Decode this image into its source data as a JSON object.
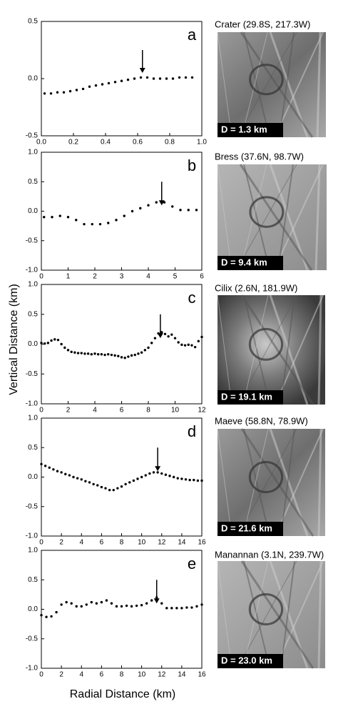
{
  "chart_data": [
    {
      "type": "scatter",
      "panel": "a",
      "image_caption": "Crater (29.8S, 217.3W)",
      "scale_label": "D = 1.3 km",
      "color": "#000000",
      "arrow_x": 0.63,
      "x": [
        0.02,
        0.06,
        0.1,
        0.14,
        0.18,
        0.22,
        0.26,
        0.3,
        0.34,
        0.38,
        0.42,
        0.46,
        0.5,
        0.54,
        0.58,
        0.62,
        0.66,
        0.7,
        0.74,
        0.78,
        0.82,
        0.86,
        0.9,
        0.94
      ],
      "values": [
        -0.13,
        -0.13,
        -0.12,
        -0.12,
        -0.11,
        -0.1,
        -0.09,
        -0.07,
        -0.06,
        -0.05,
        -0.04,
        -0.03,
        -0.02,
        -0.01,
        0.0,
        0.01,
        0.01,
        0.0,
        0.0,
        0.0,
        0.0,
        0.01,
        0.01,
        0.01
      ],
      "xlim": [
        0,
        1
      ],
      "ylim": [
        -0.5,
        0.5
      ],
      "xticks": [
        {
          "value": 0,
          "label": "0.0"
        },
        0.2,
        0.4,
        0.6,
        0.8,
        {
          "value": 1,
          "label": "1.0"
        }
      ],
      "yticks": [
        0.5,
        {
          "value": 0,
          "label": "0.0"
        },
        -0.5
      ]
    },
    {
      "type": "scatter",
      "panel": "b",
      "image_caption": "Bress (37.6N, 98.7W)",
      "scale_label": "D = 9.4 km",
      "color": "#000000",
      "arrow_x": 4.5,
      "x": [
        0.1,
        0.4,
        0.7,
        1.0,
        1.3,
        1.6,
        1.9,
        2.2,
        2.5,
        2.8,
        3.1,
        3.4,
        3.7,
        4.0,
        4.3,
        4.6,
        4.9,
        5.2,
        5.5,
        5.8
      ],
      "values": [
        -0.1,
        -0.1,
        -0.08,
        -0.1,
        -0.15,
        -0.22,
        -0.22,
        -0.22,
        -0.2,
        -0.15,
        -0.08,
        0.0,
        0.05,
        0.1,
        0.15,
        0.15,
        0.08,
        0.02,
        0.02,
        0.02
      ],
      "xlim": [
        0,
        6
      ],
      "ylim": [
        -1,
        1
      ],
      "xticks": [
        0,
        1,
        2,
        3,
        4,
        5,
        6
      ],
      "yticks": [
        {
          "value": 1,
          "label": "1.0"
        },
        0.5,
        {
          "value": 0,
          "label": "0.0"
        },
        -0.5,
        {
          "value": -1,
          "label": "-1.0"
        }
      ]
    },
    {
      "type": "scatter",
      "panel": "c",
      "image_caption": "Cilix (2.6N, 181.9W)",
      "scale_label": "D = 19.1 km",
      "color": "#000000",
      "arrow_x": 8.9,
      "x": [
        0,
        0.25,
        0.5,
        0.75,
        1,
        1.25,
        1.5,
        1.75,
        2,
        2.25,
        2.5,
        2.75,
        3,
        3.25,
        3.5,
        3.75,
        4,
        4.25,
        4.5,
        4.75,
        5,
        5.25,
        5.5,
        5.75,
        6,
        6.25,
        6.5,
        6.75,
        7,
        7.25,
        7.5,
        7.75,
        8,
        8.25,
        8.5,
        8.75,
        9,
        9.25,
        9.5,
        9.75,
        10,
        10.25,
        10.5,
        10.75,
        11,
        11.25,
        11.5,
        11.75,
        12
      ],
      "values": [
        0.02,
        0.01,
        0.02,
        0.06,
        0.08,
        0.07,
        0.0,
        -0.06,
        -0.1,
        -0.13,
        -0.14,
        -0.15,
        -0.15,
        -0.16,
        -0.16,
        -0.17,
        -0.16,
        -0.17,
        -0.17,
        -0.18,
        -0.17,
        -0.18,
        -0.19,
        -0.2,
        -0.22,
        -0.23,
        -0.21,
        -0.19,
        -0.18,
        -0.16,
        -0.14,
        -0.1,
        -0.06,
        0.02,
        0.1,
        0.18,
        0.2,
        0.17,
        0.13,
        0.16,
        0.1,
        0.03,
        -0.01,
        -0.02,
        -0.01,
        -0.02,
        -0.05,
        0.05,
        0.12
      ],
      "xlim": [
        0,
        12
      ],
      "ylim": [
        -1,
        1
      ],
      "xticks": [
        0,
        2,
        4,
        6,
        8,
        10,
        12
      ],
      "yticks": [
        {
          "value": 1,
          "label": "1.0"
        },
        0.5,
        {
          "value": 0,
          "label": "0.0"
        },
        -0.5,
        {
          "value": -1,
          "label": "-1.0"
        }
      ]
    },
    {
      "type": "scatter",
      "panel": "d",
      "image_caption": "Maeve (58.8N, 78.9W)",
      "scale_label": "D = 21.6 km",
      "color": "#000000",
      "arrow_x": 11.6,
      "x": [
        0,
        0.4,
        0.8,
        1.2,
        1.6,
        2,
        2.4,
        2.8,
        3.2,
        3.6,
        4,
        4.4,
        4.8,
        5.2,
        5.6,
        6,
        6.4,
        6.8,
        7.2,
        7.6,
        8,
        8.4,
        8.8,
        9.2,
        9.6,
        10,
        10.4,
        10.8,
        11.2,
        11.6,
        12,
        12.4,
        12.8,
        13.2,
        13.6,
        14,
        14.4,
        14.8,
        15.2,
        15.6,
        16
      ],
      "values": [
        0.22,
        0.19,
        0.16,
        0.13,
        0.1,
        0.08,
        0.05,
        0.03,
        0.0,
        -0.02,
        -0.04,
        -0.07,
        -0.09,
        -0.12,
        -0.14,
        -0.17,
        -0.19,
        -0.22,
        -0.22,
        -0.19,
        -0.16,
        -0.12,
        -0.09,
        -0.06,
        -0.03,
        0.0,
        0.03,
        0.06,
        0.08,
        0.08,
        0.06,
        0.04,
        0.02,
        0.0,
        -0.02,
        -0.03,
        -0.04,
        -0.05,
        -0.05,
        -0.06,
        -0.06
      ],
      "xlim": [
        0,
        16
      ],
      "ylim": [
        -1,
        1
      ],
      "xticks": [
        0,
        2,
        4,
        6,
        8,
        10,
        12,
        14,
        16
      ],
      "yticks": [
        {
          "value": 1,
          "label": "1.0"
        },
        0.5,
        {
          "value": 0,
          "label": "0.0"
        },
        -0.5,
        {
          "value": -1,
          "label": "-1.0"
        }
      ]
    },
    {
      "type": "scatter",
      "panel": "e",
      "image_caption": "Manannan (3.1N, 239.7W)",
      "scale_label": "D = 23.0 km",
      "color": "#000000",
      "arrow_x": 11.5,
      "x": [
        0,
        0.5,
        1,
        1.5,
        2,
        2.5,
        3,
        3.5,
        4,
        4.5,
        5,
        5.5,
        6,
        6.5,
        7,
        7.5,
        8,
        8.5,
        9,
        9.5,
        10,
        10.5,
        11,
        11.5,
        12,
        12.5,
        13,
        13.5,
        14,
        14.5,
        15,
        15.5,
        16
      ],
      "values": [
        -0.1,
        -0.13,
        -0.12,
        -0.05,
        0.08,
        0.12,
        0.1,
        0.05,
        0.05,
        0.08,
        0.12,
        0.1,
        0.12,
        0.15,
        0.1,
        0.05,
        0.05,
        0.06,
        0.05,
        0.06,
        0.07,
        0.1,
        0.15,
        0.2,
        0.1,
        0.02,
        0.02,
        0.02,
        0.02,
        0.03,
        0.03,
        0.05,
        0.08
      ],
      "xlim": [
        0,
        16
      ],
      "ylim": [
        -1,
        1
      ],
      "xticks": [
        0,
        2,
        4,
        6,
        8,
        10,
        12,
        14,
        16
      ],
      "yticks": [
        {
          "value": 1,
          "label": "1.0"
        },
        0.5,
        {
          "value": 0,
          "label": "0.0"
        },
        -0.5,
        {
          "value": -1,
          "label": "-1.0"
        }
      ]
    }
  ],
  "xlabel": "Radial Distance (km)",
  "ylabel": "Vertical Distance (km)"
}
